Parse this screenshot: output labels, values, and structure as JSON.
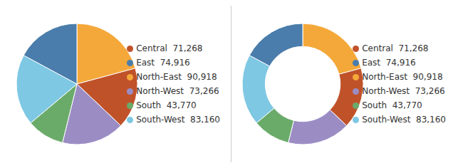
{
  "chart_data": [
    {
      "type": "pie",
      "categories": [
        "North-East  90,918",
        "Central  71,268",
        "North-West  73,266",
        "South  43,770",
        "South-West  83,160",
        "East  74,916"
      ],
      "values": [
        90918,
        71268,
        73266,
        43770,
        83160,
        74916
      ],
      "colors": [
        "#F5A83A",
        "#C0522A",
        "#9B8DC4",
        "#6AAB6A",
        "#7EC8E3",
        "#4A7DAB"
      ],
      "legend": "right"
    },
    {
      "type": "donut",
      "categories": [
        "North-East  90,918",
        "Central  71,268",
        "North-West  73,266",
        "South  43,770",
        "South-West  83,160",
        "East  74,916"
      ],
      "values": [
        90918,
        71268,
        73266,
        43770,
        83160,
        74916
      ],
      "colors": [
        "#F5A83A",
        "#C0522A",
        "#9B8DC4",
        "#6AAB6A",
        "#7EC8E3",
        "#4A7DAB"
      ],
      "legend": "right"
    }
  ]
}
